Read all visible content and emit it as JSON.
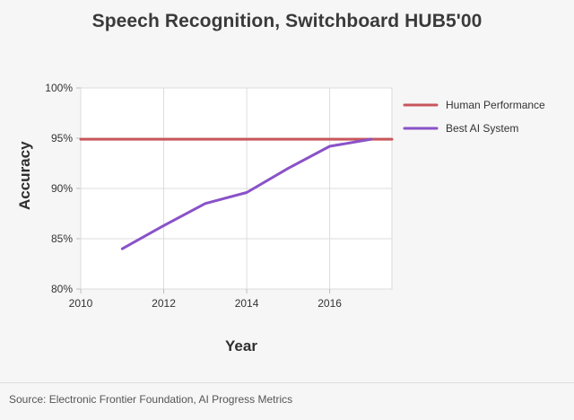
{
  "chart_data": {
    "type": "line",
    "title": "Speech Recognition, Switchboard HUB5'00",
    "xlabel": "Year",
    "ylabel": "Accuracy",
    "xlim": [
      2010,
      2017.5
    ],
    "ylim": [
      80,
      100
    ],
    "x_ticks": [
      "2010",
      "2012",
      "2014",
      "2016"
    ],
    "y_ticks": [
      "80%",
      "85%",
      "90%",
      "95%",
      "100%"
    ],
    "grid": true,
    "legend_position": "right",
    "series": [
      {
        "name": "Human Performance",
        "color": "#c8565b",
        "x": [
          2010,
          2017.5
        ],
        "y": [
          94.9,
          94.9
        ]
      },
      {
        "name": "Best AI System",
        "color": "#8a52c8",
        "x": [
          2011,
          2012,
          2013,
          2014,
          2015,
          2016,
          2017
        ],
        "y": [
          84.0,
          86.3,
          88.5,
          89.6,
          92.0,
          94.2,
          94.9
        ]
      }
    ]
  },
  "source": "Source: Electronic Frontier Foundation, AI Progress Metrics"
}
